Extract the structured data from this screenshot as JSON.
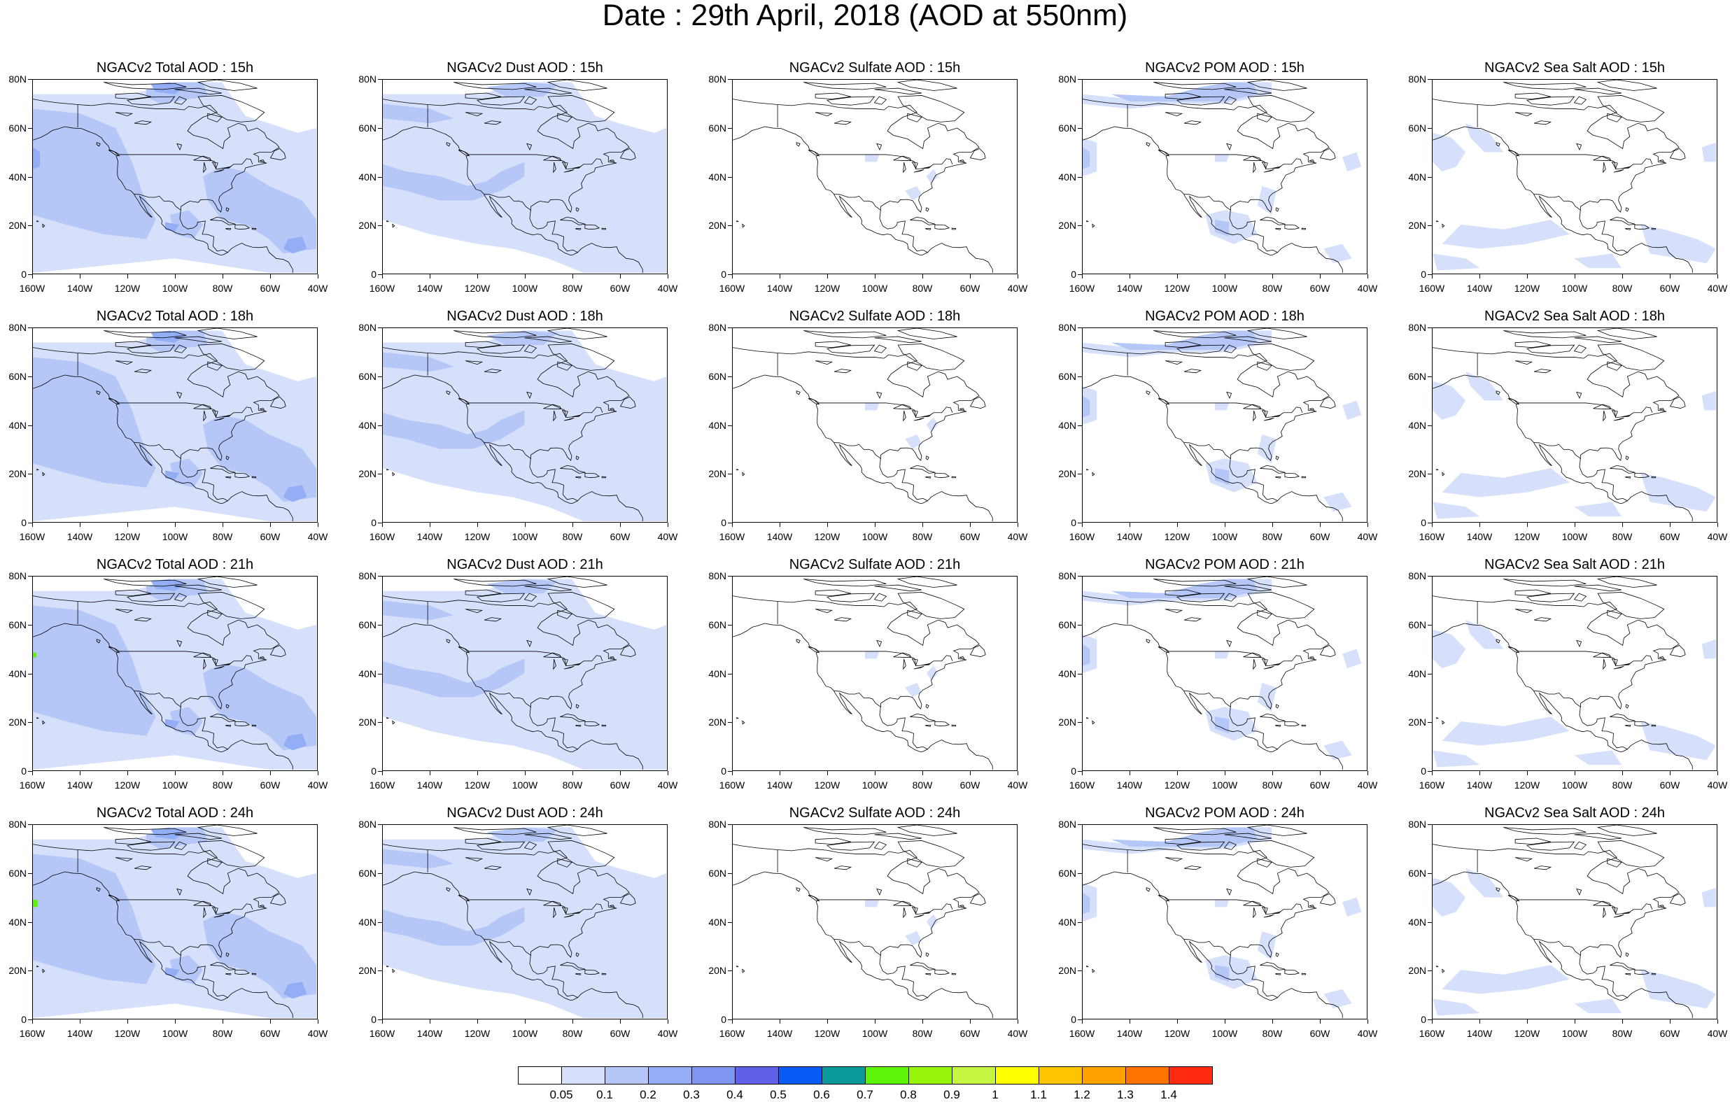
{
  "title": "Date : 29th April, 2018 (AOD at 550nm)",
  "y_ticks": [
    "80N",
    "60N",
    "40N",
    "20N",
    "0"
  ],
  "x_ticks": [
    "160W",
    "140W",
    "120W",
    "100W",
    "80W",
    "60W",
    "40W"
  ],
  "panels": [
    {
      "title": "NGACv2 Total AOD : 15h",
      "species": "total",
      "hour": "15h"
    },
    {
      "title": "NGACv2 Dust AOD : 15h",
      "species": "dust",
      "hour": "15h"
    },
    {
      "title": "NGACv2 Sulfate AOD : 15h",
      "species": "sulfate",
      "hour": "15h"
    },
    {
      "title": "NGACv2 POM AOD : 15h",
      "species": "pom",
      "hour": "15h"
    },
    {
      "title": "NGACv2 Sea Salt AOD : 15h",
      "species": "seasalt",
      "hour": "15h"
    },
    {
      "title": "NGACv2 Total AOD : 18h",
      "species": "total",
      "hour": "18h"
    },
    {
      "title": "NGACv2 Dust AOD : 18h",
      "species": "dust",
      "hour": "18h"
    },
    {
      "title": "NGACv2 Sulfate AOD : 18h",
      "species": "sulfate",
      "hour": "18h"
    },
    {
      "title": "NGACv2 POM AOD : 18h",
      "species": "pom",
      "hour": "18h"
    },
    {
      "title": "NGACv2 Sea Salt AOD : 18h",
      "species": "seasalt",
      "hour": "18h"
    },
    {
      "title": "NGACv2 Total AOD : 21h",
      "species": "total",
      "hour": "21h"
    },
    {
      "title": "NGACv2 Dust AOD : 21h",
      "species": "dust",
      "hour": "21h"
    },
    {
      "title": "NGACv2 Sulfate AOD : 21h",
      "species": "sulfate",
      "hour": "21h"
    },
    {
      "title": "NGACv2 POM AOD : 21h",
      "species": "pom",
      "hour": "21h"
    },
    {
      "title": "NGACv2 Sea Salt AOD : 21h",
      "species": "seasalt",
      "hour": "21h"
    },
    {
      "title": "NGACv2 Total AOD : 24h",
      "species": "total",
      "hour": "24h"
    },
    {
      "title": "NGACv2 Dust AOD : 24h",
      "species": "dust",
      "hour": "24h"
    },
    {
      "title": "NGACv2 Sulfate AOD : 24h",
      "species": "sulfate",
      "hour": "24h"
    },
    {
      "title": "NGACv2 POM AOD : 24h",
      "species": "pom",
      "hour": "24h"
    },
    {
      "title": "NGACv2 Sea Salt  AOD : 24h",
      "species": "seasalt",
      "hour": "24h"
    }
  ],
  "colorbar": {
    "labels": [
      "0.05",
      "0.1",
      "0.2",
      "0.3",
      "0.4",
      "0.5",
      "0.6",
      "0.7",
      "0.8",
      "0.9",
      "1",
      "1.1",
      "1.2",
      "1.3",
      "1.4"
    ],
    "colors": [
      "#ffffff",
      "#d6e0fa",
      "#b4c7f7",
      "#93aef5",
      "#7f96f0",
      "#5f62e8",
      "#0a5bf5",
      "#0a9898",
      "#5cf50a",
      "#98f50a",
      "#c6f542",
      "#ffff00",
      "#ffc400",
      "#ffa200",
      "#ff7400",
      "#ff2a10"
    ]
  },
  "aod_fill_colors": {
    "light": "#d6e0fa",
    "medium": "#b4c7f7",
    "strong": "#93aef5",
    "green": "#5cf50a"
  }
}
